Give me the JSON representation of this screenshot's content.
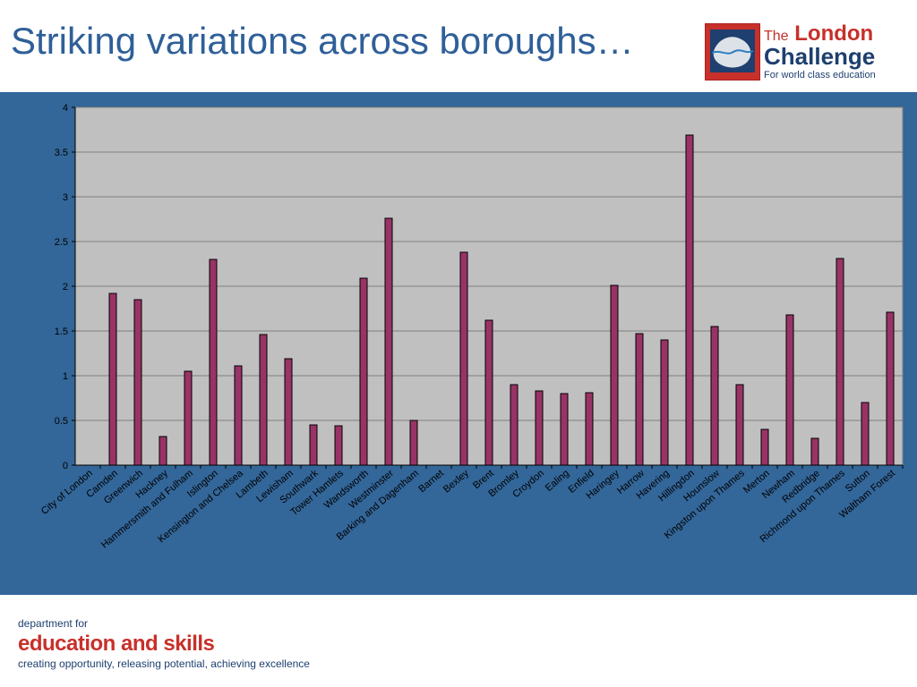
{
  "slide": {
    "title": "Striking variations across boroughs…"
  },
  "logo": {
    "the": "The",
    "london": "London",
    "challenge": "Challenge",
    "tagline": "For world class education"
  },
  "footer": {
    "line1": "department for",
    "line2": "education and skills",
    "line3": "creating opportunity, releasing potential, achieving excellence"
  },
  "colors": {
    "bar": "#993366",
    "plot_bg": "#c0c0c0",
    "panel_bg": "#336699",
    "title": "#2f5f98",
    "brand_red": "#c8302a",
    "brand_navy": "#1e3f6f"
  },
  "chart_data": {
    "type": "bar",
    "title": "",
    "xlabel": "",
    "ylabel": "",
    "ylim": [
      0,
      4
    ],
    "yticks": [
      "0",
      "0.5",
      "1",
      "1.5",
      "2",
      "2.5",
      "3",
      "3.5",
      "4"
    ],
    "grid": true,
    "legend": "none",
    "categories": [
      "City of London",
      "Camden",
      "Greenwich",
      "Hackney",
      "Hammersmith and Fulham",
      "Islington",
      "Kensington and Chelsea",
      "Lambeth",
      "Lewisham",
      "Southwark",
      "Tower Hamlets",
      "Wandsworth",
      "Westminster",
      "Barking and Dagenham",
      "Barnet",
      "Bexley",
      "Brent",
      "Bromley",
      "Croydon",
      "Ealing",
      "Enfield",
      "Haringey",
      "Harrow",
      "Havering",
      "Hillingdon",
      "Hounslow",
      "Kingston upon Thames",
      "Merton",
      "Newham",
      "Redbridge",
      "Richmond upon Thames",
      "Sutton",
      "Waltham Forest"
    ],
    "values": [
      0,
      1.92,
      1.85,
      0.32,
      1.05,
      2.3,
      1.11,
      1.46,
      1.19,
      0.45,
      0.44,
      2.09,
      2.76,
      0.5,
      0,
      2.38,
      1.62,
      0.9,
      0.83,
      0.8,
      0.81,
      2.01,
      1.47,
      1.4,
      3.69,
      1.55,
      0.9,
      0.4,
      1.68,
      0.3,
      2.31,
      0.7,
      1.71
    ]
  }
}
